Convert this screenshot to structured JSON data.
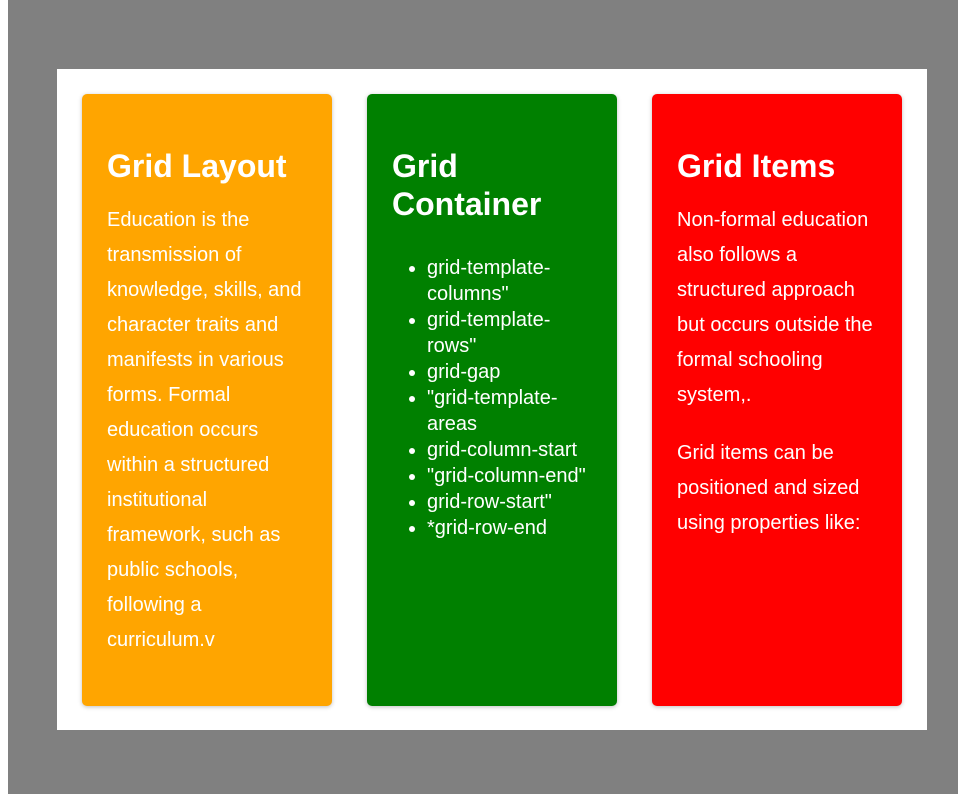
{
  "colors": {
    "backdrop": "#808080",
    "panel": "#ffffff",
    "orange": "#ffa500",
    "green": "#008000",
    "red": "#ff0000",
    "text": "#ffffff"
  },
  "cards": [
    {
      "title": "Grid Layout",
      "paragraphs": [
        "Education is the transmission of knowledge, skills, and character traits and manifests in various forms. Formal education occurs within a structured institutional framework, such as public schools, following a curriculum.v"
      ]
    },
    {
      "title": "Grid Container",
      "items": [
        "grid-template-columns\"",
        "grid-template-rows\"",
        "grid-gap",
        "\"grid-template-areas",
        "grid-column-start",
        "\"grid-column-end\"",
        "grid-row-start\"",
        "*grid-row-end"
      ]
    },
    {
      "title": "Grid Items",
      "paragraphs": [
        "Non-formal education also follows a structured approach but occurs outside the formal schooling system,.",
        "Grid items can be positioned and sized using properties like:"
      ]
    }
  ]
}
